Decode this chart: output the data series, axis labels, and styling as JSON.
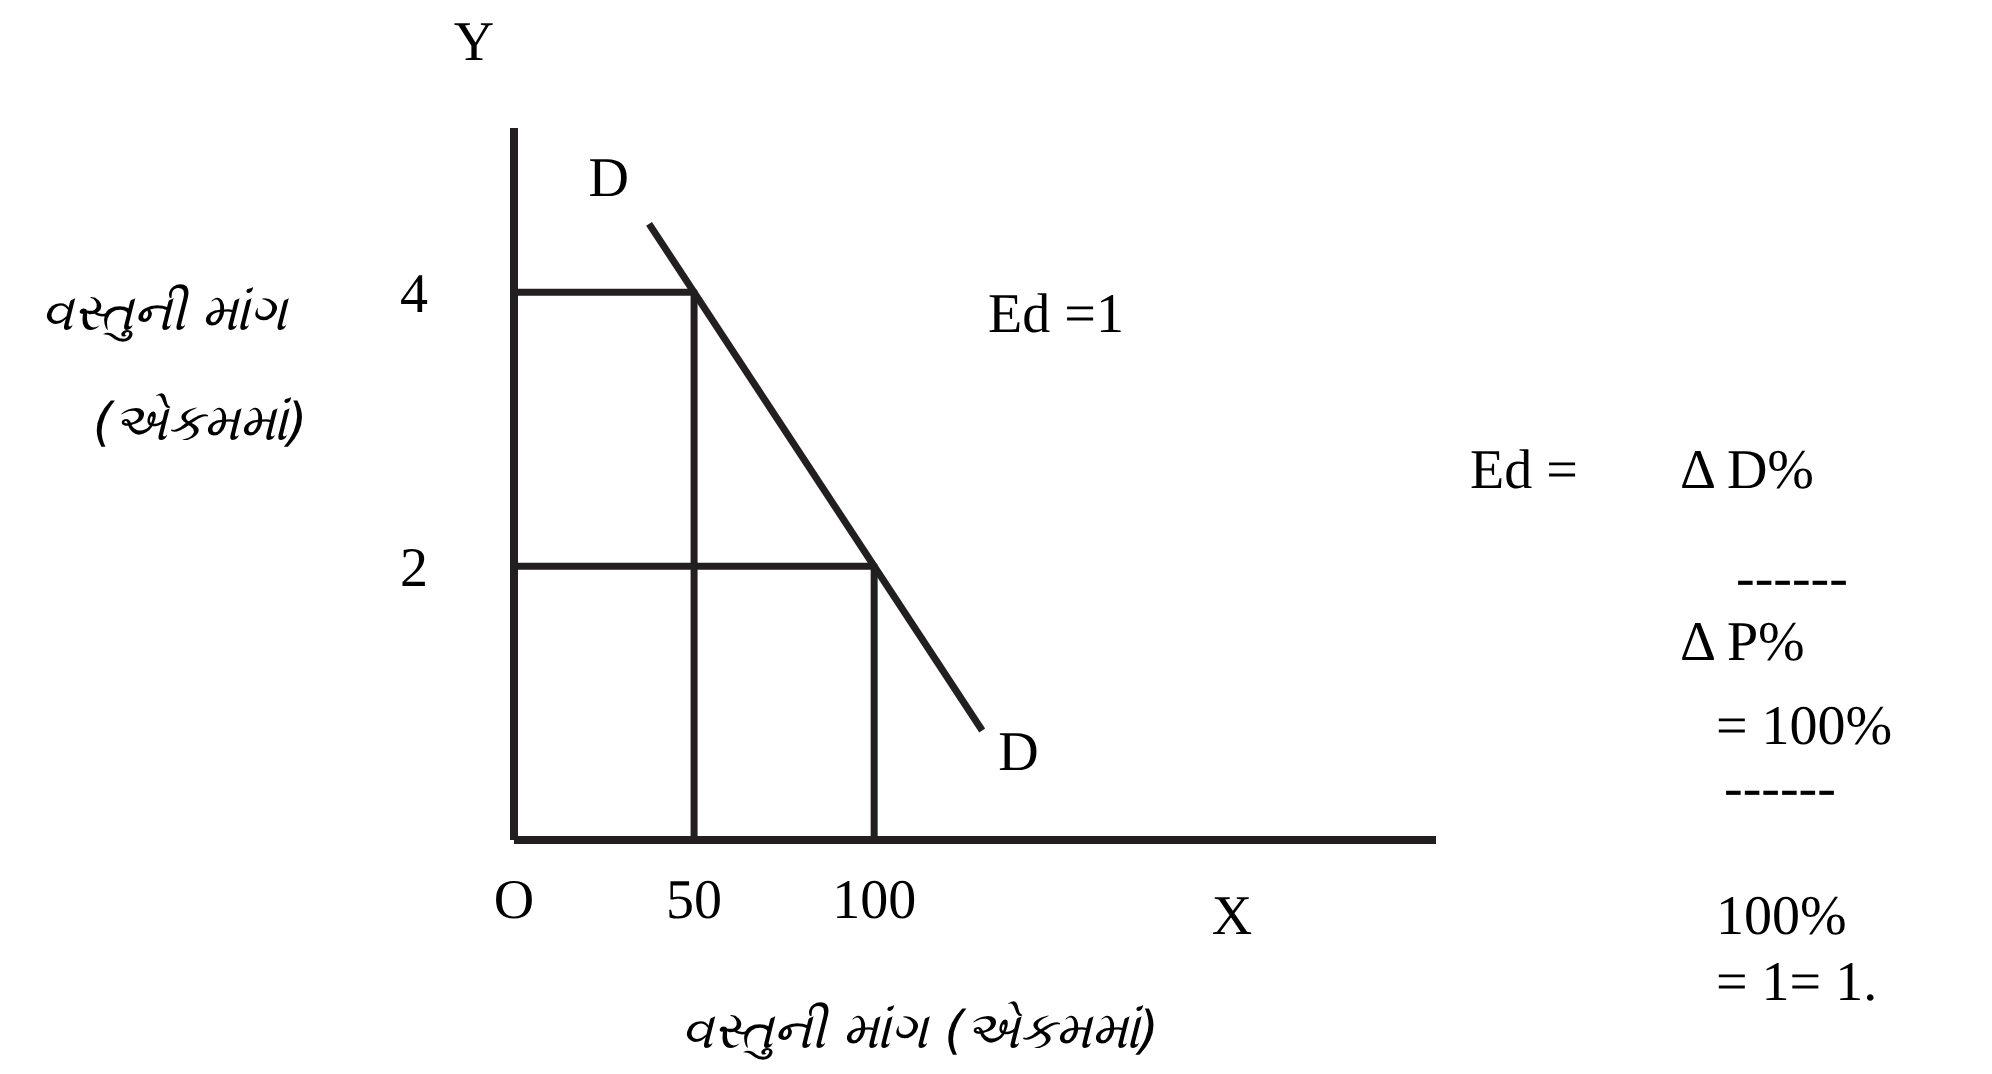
{
  "chart_data": {
    "type": "line",
    "xlabel": "વસ્તુની માંગ (એકમમાં)",
    "ylabel": "વસ્તુની માંગ (એકમમાં)",
    "xlim": [
      0,
      256
    ],
    "ylim": [
      0,
      5.2
    ],
    "xticks": [
      {
        "value": 0,
        "label": "O"
      },
      50,
      100
    ],
    "yticks": [
      2,
      4
    ],
    "grid": false,
    "marker": "none",
    "line_style": "solid",
    "series": [
      {
        "color": "#231f20",
        "x": [
          37.5,
          130
        ],
        "values": [
          4.5,
          0.8
        ]
      },
      {
        "color": "#231f20",
        "x": [
          0,
          50,
          50
        ],
        "values": [
          4,
          4,
          0
        ]
      },
      {
        "color": "#231f20",
        "x": [
          0,
          100,
          100
        ],
        "values": [
          2,
          2,
          0
        ]
      }
    ],
    "annotations": [
      {
        "text": "D",
        "x": 37.5,
        "y": 4.5
      },
      {
        "text": "D",
        "x": 130,
        "y": 0.8
      },
      "Y",
      "X",
      "Ed =1",
      "Ed =",
      "Δ D%",
      "------",
      "Δ P%",
      "= 100%",
      "------",
      "100%",
      "= 1= 1."
    ]
  }
}
